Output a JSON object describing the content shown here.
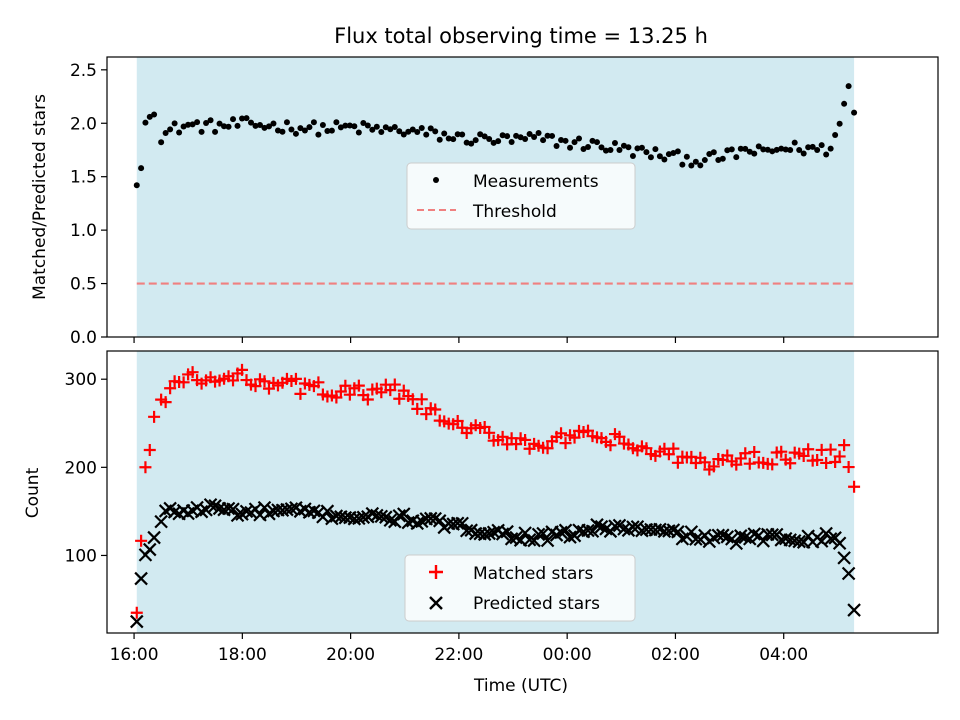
{
  "figure_title": "Flux total observing time = 13.25 h",
  "colors": {
    "shade": "#add8e6",
    "threshold": "#f08080",
    "matched": "#ff0000",
    "measure": "#000000",
    "predicted": "#000000"
  },
  "chart_data": [
    {
      "type": "scatter",
      "title": "Flux total observing time = 13.25 h",
      "xlabel": "",
      "ylabel": "Matched/Predicted stars",
      "ylim": [
        0,
        2.62
      ],
      "yticks": [
        0,
        0.5,
        1.0,
        1.5,
        2.0,
        2.5
      ],
      "ytick_labels": [
        "0.0",
        "0.5",
        "1.0",
        "1.5",
        "2.0",
        "2.5"
      ],
      "shaded_interval_hours": [
        16.05,
        29.3
      ],
      "legend_location": "center",
      "legend": [
        "Measurements",
        "Threshold"
      ],
      "threshold": 0.5,
      "series": [
        {
          "name": "Measurements",
          "anchors_x": [
            16.05,
            16.12,
            16.2,
            16.28,
            16.38,
            16.5,
            16.75,
            17.0,
            17.5,
            18.0,
            18.5,
            19.0,
            19.5,
            20.0,
            20.5,
            21.0,
            21.5,
            22.0,
            22.5,
            23.0,
            23.5,
            24.0,
            24.5,
            25.0,
            25.5,
            26.0,
            26.5,
            27.0,
            27.3,
            27.6,
            28.0,
            28.5,
            28.8,
            29.0,
            29.1,
            29.2,
            29.3
          ],
          "anchors_y": [
            1.42,
            1.52,
            2.0,
            2.05,
            2.15,
            1.88,
            1.95,
            1.98,
            1.97,
            1.99,
            1.98,
            1.96,
            1.95,
            1.96,
            1.94,
            1.93,
            1.9,
            1.86,
            1.85,
            1.84,
            1.86,
            1.82,
            1.8,
            1.76,
            1.72,
            1.68,
            1.65,
            1.7,
            1.75,
            1.72,
            1.77,
            1.76,
            1.75,
            1.92,
            2.15,
            2.35,
            2.1
          ]
        }
      ]
    },
    {
      "type": "scatter",
      "xlabel": "Time (UTC)",
      "ylabel": "Count",
      "ylim": [
        12,
        332
      ],
      "yticks": [
        100,
        200,
        300
      ],
      "ytick_labels": [
        "100",
        "200",
        "300"
      ],
      "xlim_hours": [
        15.5,
        30.85
      ],
      "xticks_hours": [
        16,
        18,
        20,
        22,
        24,
        26,
        28
      ],
      "xtick_labels": [
        "16:00",
        "18:00",
        "20:00",
        "22:00",
        "00:00",
        "02:00",
        "04:00"
      ],
      "shaded_interval_hours": [
        16.05,
        29.3
      ],
      "legend_location": "bottom-center",
      "legend": [
        "Matched stars",
        "Predicted stars"
      ],
      "series": [
        {
          "name": "Matched stars",
          "anchors_x": [
            16.05,
            16.12,
            16.2,
            16.28,
            16.38,
            16.5,
            16.65,
            17.0,
            17.5,
            18.0,
            18.5,
            19.0,
            19.5,
            20.0,
            20.5,
            20.8,
            21.2,
            21.5,
            22.0,
            22.5,
            23.0,
            23.5,
            24.0,
            24.5,
            25.0,
            25.5,
            26.0,
            26.5,
            27.0,
            27.5,
            28.0,
            28.5,
            29.0,
            29.1,
            29.2,
            29.3
          ],
          "anchors_y": [
            35,
            105,
            198,
            215,
            262,
            270,
            292,
            300,
            298,
            302,
            298,
            292,
            288,
            285,
            283,
            288,
            272,
            262,
            244,
            238,
            232,
            226,
            232,
            234,
            228,
            218,
            212,
            205,
            207,
            212,
            212,
            212,
            215,
            230,
            200,
            178
          ]
        },
        {
          "name": "Predicted stars",
          "anchors_x": [
            16.05,
            16.12,
            16.2,
            16.28,
            16.38,
            16.5,
            16.6,
            17.0,
            17.5,
            18.0,
            18.5,
            19.0,
            19.5,
            20.0,
            20.5,
            21.0,
            21.5,
            22.0,
            22.5,
            23.0,
            23.5,
            24.0,
            24.5,
            25.0,
            25.5,
            26.0,
            26.5,
            27.0,
            27.5,
            28.0,
            28.5,
            29.0,
            29.08,
            29.15,
            29.22,
            29.3
          ],
          "anchors_y": [
            25,
            70,
            100,
            105,
            122,
            138,
            150,
            150,
            155,
            148,
            150,
            150,
            147,
            144,
            143,
            142,
            138,
            132,
            128,
            123,
            120,
            124,
            130,
            132,
            128,
            125,
            120,
            118,
            120,
            120,
            120,
            120,
            105,
            90,
            75,
            38
          ]
        }
      ]
    }
  ]
}
